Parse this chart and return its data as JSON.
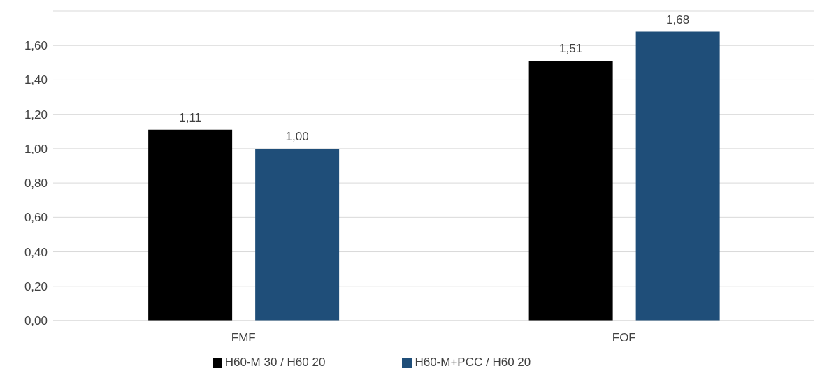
{
  "chart_data": {
    "type": "bar",
    "categories": [
      "FMF",
      "FOF"
    ],
    "series": [
      {
        "name": "H60-M 30 / H60 20",
        "color": "#000000",
        "values": [
          1.11,
          1.51
        ],
        "value_labels": [
          "1,11",
          "1,51"
        ]
      },
      {
        "name": "H60-M+PCC / H60 20",
        "color": "#1f4e79",
        "values": [
          1.0,
          1.68
        ],
        "value_labels": [
          "1,00",
          "1,68"
        ]
      }
    ],
    "ylim": [
      0,
      1.8
    ],
    "yticks": [
      {
        "value": 0,
        "label": "0,00"
      },
      {
        "value": 0.2,
        "label": "0,20"
      },
      {
        "value": 0.4,
        "label": "0,40"
      },
      {
        "value": 0.6,
        "label": "0,60"
      },
      {
        "value": 0.8,
        "label": "0,80"
      },
      {
        "value": 1.0,
        "label": "1,00"
      },
      {
        "value": 1.2,
        "label": "1,20"
      },
      {
        "value": 1.4,
        "label": "1,40"
      },
      {
        "value": 1.6,
        "label": "1,60"
      }
    ],
    "grid": "y",
    "legend": "bottom"
  }
}
